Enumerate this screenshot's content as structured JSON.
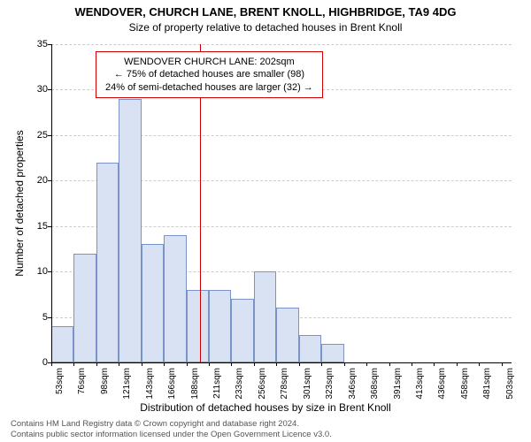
{
  "title_line1": "WENDOVER, CHURCH LANE, BRENT KNOLL, HIGHBRIDGE, TA9 4DG",
  "title_line2": "Size of property relative to detached houses in Brent Knoll",
  "y_axis_label": "Number of detached properties",
  "x_axis_label": "Distribution of detached houses by size in Brent Knoll",
  "footer_line1": "Contains HM Land Registry data © Crown copyright and database right 2024.",
  "footer_line2": "Contains public sector information licensed under the Open Government Licence v3.0.",
  "annotation": {
    "line1": "WENDOVER CHURCH LANE: 202sqm",
    "line2": "← 75% of detached houses are smaller (98)",
    "line3": "24% of semi-detached houses are larger (32) →",
    "marker_x": 202
  },
  "chart": {
    "type": "histogram",
    "x_min": 53,
    "x_max": 513,
    "y_min": 0,
    "y_max": 35,
    "y_ticks": [
      0,
      5,
      10,
      15,
      20,
      25,
      30,
      35
    ],
    "x_tick_start": 53,
    "x_tick_step": 22.5,
    "x_tick_count": 21,
    "x_tick_suffix": "sqm",
    "bar_fill": "#d9e2f3",
    "bar_stroke": "#7a93c9",
    "grid_color": "#cccccc",
    "marker_color": "#cc0000",
    "background": "#ffffff",
    "bars": [
      {
        "x0": 53,
        "x1": 75.5,
        "count": 4
      },
      {
        "x0": 75.5,
        "x1": 98,
        "count": 12
      },
      {
        "x0": 98,
        "x1": 120.5,
        "count": 22
      },
      {
        "x0": 120.5,
        "x1": 143,
        "count": 29
      },
      {
        "x0": 143,
        "x1": 165.5,
        "count": 13
      },
      {
        "x0": 165.5,
        "x1": 188,
        "count": 14
      },
      {
        "x0": 188,
        "x1": 210.5,
        "count": 8
      },
      {
        "x0": 210.5,
        "x1": 233,
        "count": 8
      },
      {
        "x0": 233,
        "x1": 255.5,
        "count": 7
      },
      {
        "x0": 255.5,
        "x1": 278,
        "count": 10
      },
      {
        "x0": 278,
        "x1": 300.5,
        "count": 6
      },
      {
        "x0": 300.5,
        "x1": 323,
        "count": 3
      },
      {
        "x0": 323,
        "x1": 345.5,
        "count": 2
      }
    ]
  }
}
